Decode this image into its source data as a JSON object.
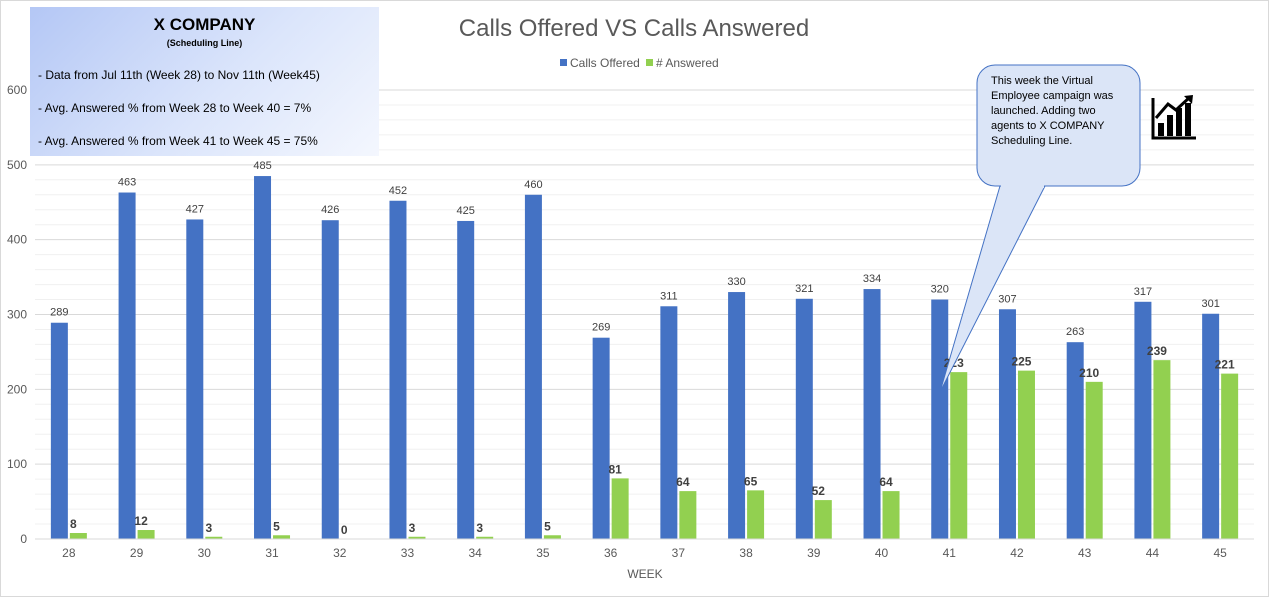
{
  "info_box": {
    "title": "X COMPANY",
    "subtitle": "(Scheduling Line)",
    "lines": [
      "- Data from Jul 11th (Week  28) to Nov 11th (Week45)",
      "- Avg. Answered  % from Week 28 to Week 40 = 7%",
      "- Avg. Answered  % from Week 41 to Week 45 = 75%"
    ]
  },
  "callout": {
    "text": "This week the Virtual Employee campaign was launched. Adding two agents to X COMPANY Scheduling Line."
  },
  "icons": {
    "chart_icon": "bar-chart-growth-icon"
  },
  "colors": {
    "offered": "#4472c4",
    "answered": "#92d050",
    "grid": "#d9d9d9"
  },
  "chart_data": {
    "type": "bar",
    "title": "Calls Offered VS Calls Answered",
    "xlabel": "WEEK",
    "ylabel": "",
    "ylim": [
      0,
      600
    ],
    "yticks": [
      0,
      100,
      200,
      300,
      400,
      500,
      600
    ],
    "legend_position": "top-center",
    "categories": [
      "28",
      "29",
      "30",
      "31",
      "32",
      "33",
      "34",
      "35",
      "36",
      "37",
      "38",
      "39",
      "40",
      "41",
      "42",
      "43",
      "44",
      "45"
    ],
    "series": [
      {
        "name": "Calls Offered",
        "values": [
          289,
          463,
          427,
          485,
          426,
          452,
          425,
          460,
          269,
          311,
          330,
          321,
          334,
          320,
          307,
          263,
          317,
          301
        ]
      },
      {
        "name": "# Answered",
        "values": [
          8,
          12,
          3,
          5,
          0,
          3,
          3,
          5,
          81,
          64,
          65,
          52,
          64,
          223,
          225,
          210,
          239,
          221
        ]
      }
    ]
  }
}
